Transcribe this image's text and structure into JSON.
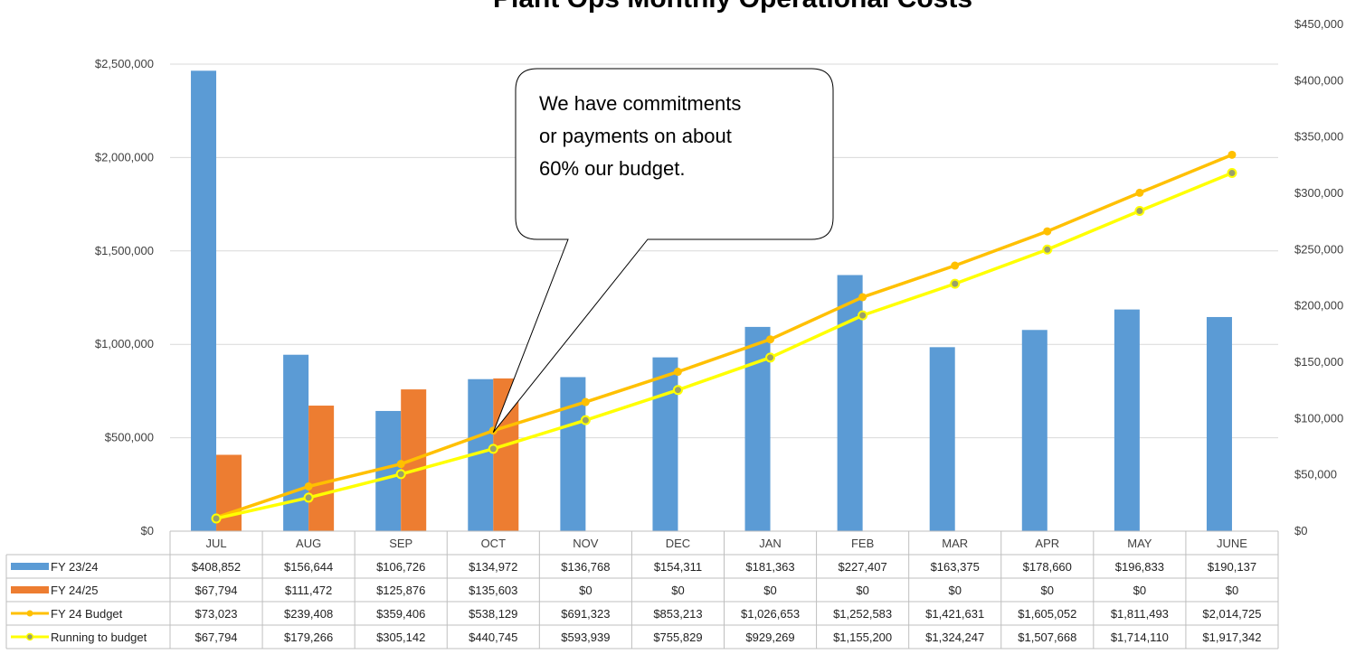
{
  "chart_data": {
    "type": "bar",
    "title": "Plant Ops Monthly Operational Costs",
    "categories": [
      "JUL",
      "AUG",
      "SEP",
      "OCT",
      "NOV",
      "DEC",
      "JAN",
      "FEB",
      "MAR",
      "APR",
      "MAY",
      "JUNE"
    ],
    "y_left": {
      "ylim": [
        0,
        2500000
      ],
      "ticks": [
        "$0",
        "$500,000",
        "$1,000,000",
        "$1,500,000",
        "$2,000,000",
        "$2,500,000"
      ],
      "tick_values": [
        0,
        500000,
        1000000,
        1500000,
        2000000,
        2500000
      ]
    },
    "y_right": {
      "ylim": [
        0,
        450000
      ],
      "ticks": [
        "$0",
        "$50,000",
        "$100,000",
        "$150,000",
        "$200,000",
        "$250,000",
        "$300,000",
        "$350,000",
        "$400,000",
        "$450,000"
      ],
      "tick_values": [
        0,
        50000,
        100000,
        150000,
        200000,
        250000,
        300000,
        350000,
        400000,
        450000
      ]
    },
    "series": [
      {
        "name": "FY 23/24",
        "type": "bar",
        "axis": "right",
        "color": "#5b9bd5",
        "values": [
          408852,
          156644,
          106726,
          134972,
          136768,
          154311,
          181363,
          227407,
          163375,
          178660,
          196833,
          190137
        ],
        "display": [
          "$408,852",
          "$156,644",
          "$106,726",
          "$134,972",
          "$136,768",
          "$154,311",
          "$181,363",
          "$227,407",
          "$163,375",
          "$178,660",
          "$196,833",
          "$190,137"
        ]
      },
      {
        "name": "FY 24/25",
        "type": "bar",
        "axis": "right",
        "color": "#ed7d31",
        "values": [
          67794,
          111472,
          125876,
          135603,
          0,
          0,
          0,
          0,
          0,
          0,
          0,
          0
        ],
        "display": [
          "$67,794",
          "$111,472",
          "$125,876",
          "$135,603",
          "$0",
          "$0",
          "$0",
          "$0",
          "$0",
          "$0",
          "$0",
          "$0"
        ]
      },
      {
        "name": "FY 24 Budget",
        "type": "line",
        "axis": "left",
        "color": "#ffc000",
        "values": [
          73023,
          239408,
          359406,
          538129,
          691323,
          853213,
          1026653,
          1252583,
          1421631,
          1605052,
          1811493,
          2014725
        ],
        "display": [
          "$73,023",
          "$239,408",
          "$359,406",
          "$538,129",
          "$691,323",
          "$853,213",
          "$1,026,653",
          "$1,252,583",
          "$1,421,631",
          "$1,605,052",
          "$1,811,493",
          "$2,014,725"
        ]
      },
      {
        "name": "Running to budget",
        "type": "line",
        "axis": "left",
        "color": "#ffff00",
        "values": [
          67794,
          179266,
          305142,
          440745,
          593939,
          755829,
          929269,
          1155200,
          1324247,
          1507668,
          1714110,
          1917342
        ],
        "display": [
          "$67,794",
          "$179,266",
          "$305,142",
          "$440,745",
          "$593,939",
          "$755,829",
          "$929,269",
          "$1,155,200",
          "$1,324,247",
          "$1,507,668",
          "$1,714,110",
          "$1,917,342"
        ]
      }
    ],
    "annotation": {
      "lines": [
        "We have commitments",
        "or payments on about",
        "60% our budget."
      ],
      "points_to": "OCT"
    },
    "grid": true,
    "legend": "data-table"
  }
}
